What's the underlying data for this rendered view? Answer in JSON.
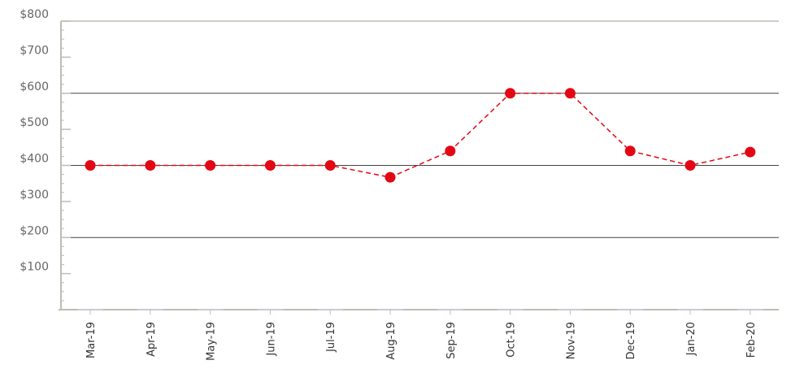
{
  "chart_data": {
    "type": "line",
    "title": "",
    "xlabel": "",
    "ylabel": "",
    "categories": [
      "Mar-19",
      "Apr-19",
      "May-19",
      "Jun-19",
      "Jul-19",
      "Aug-19",
      "Sep-19",
      "Oct-19",
      "Nov-19",
      "Dec-19",
      "Jan-20",
      "Feb-20"
    ],
    "series": [
      {
        "values": [
          400,
          400,
          400,
          400,
          400,
          367,
          440,
          600,
          600,
          440,
          400,
          437
        ]
      }
    ],
    "ylim": [
      0,
      800
    ],
    "yticks": [
      100,
      200,
      300,
      400,
      500,
      600,
      700,
      800
    ],
    "ytick_labels": [
      "$100",
      "$200",
      "$300",
      "$400",
      "$500",
      "$600",
      "$700",
      "$800"
    ],
    "gridlines_at": [
      200,
      400,
      600
    ],
    "legend": "none",
    "colors": {
      "line": "#e30613",
      "marker": "#e30613",
      "axis": "#bdbdb2",
      "grid": "#444444",
      "ytick_text": "#666666",
      "xtick_text": "#333333"
    }
  }
}
